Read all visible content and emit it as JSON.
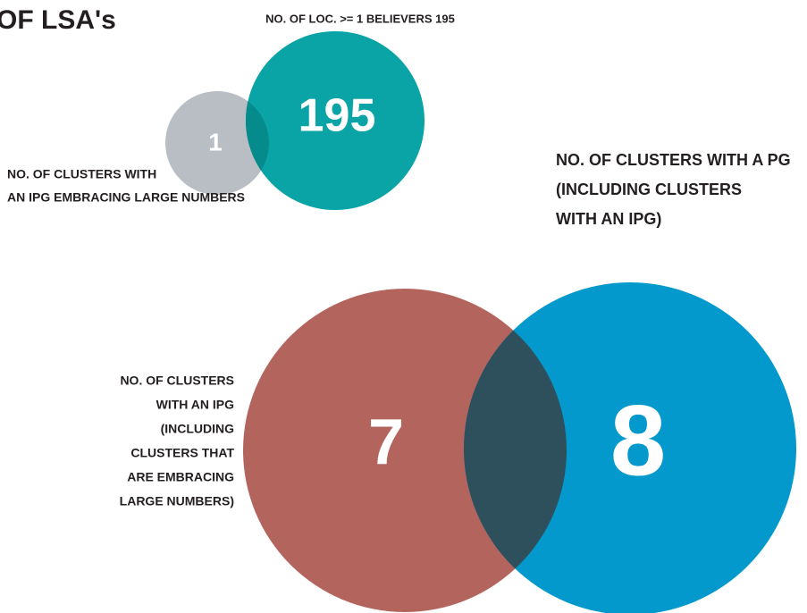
{
  "title": "OF LSA's",
  "top_venn": {
    "top_label": "NO. OF LOC. >= 1 BELIEVERS 195",
    "left_number": 1,
    "right_number": 195,
    "left_label": [
      "NO. OF CLUSTERS WITH",
      "AN IPG EMBRACING LARGE NUMBERS"
    ]
  },
  "bottom_venn": {
    "right_label": [
      "NO. OF CLUSTERS WITH A PG",
      "(INCLUDING CLUSTERS",
      "WITH AN IPG)"
    ],
    "left_label": [
      "NO. OF CLUSTERS",
      "WITH AN IPG",
      "(INCLUDING",
      "CLUSTERS THAT",
      "ARE EMBRACING",
      "LARGE NUMBERS)"
    ],
    "left_number": 7,
    "right_number": 8
  }
}
